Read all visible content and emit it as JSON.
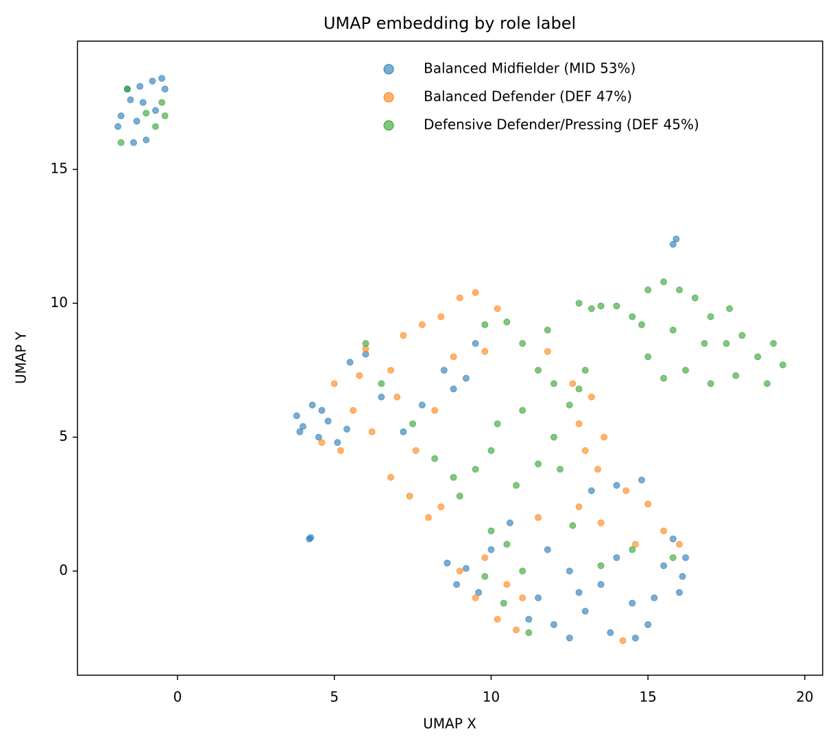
{
  "chart_data": {
    "type": "scatter",
    "title": "UMAP embedding by role label",
    "x_label": "UMAP X",
    "y_label": "UMAP Y",
    "xlim": [
      -3.19,
      20.57
    ],
    "ylim": [
      -3.89,
      19.79
    ],
    "xticks": [
      0,
      5,
      10,
      15,
      20
    ],
    "yticks": [
      0,
      5,
      10,
      15
    ],
    "grid": false,
    "legend": "upper right",
    "series": [
      {
        "name": "Balanced Midfielder (MID 53%)",
        "color": "#1f77b4",
        "x": [
          -1.8,
          -1.5,
          -1.2,
          -0.8,
          -0.5,
          -1.9,
          -1.4,
          -1.0,
          -0.7,
          -1.1,
          -1.6,
          -0.4,
          -1.3,
          15.8,
          15.9,
          4.2,
          4.25,
          3.8,
          4.0,
          4.3,
          4.5,
          4.8,
          5.1,
          5.4,
          3.9,
          4.6,
          5.5,
          6.0,
          8.5,
          8.8,
          9.2,
          7.8,
          6.5,
          9.5,
          7.2,
          8.6,
          8.9,
          9.2,
          10.0,
          11.5,
          12.0,
          12.5,
          13.0,
          13.5,
          14.0,
          14.5,
          15.0,
          15.5,
          16.0,
          16.2,
          15.8,
          14.8,
          14.0,
          13.2,
          12.5,
          11.8,
          13.8,
          14.6,
          12.8,
          15.2,
          16.1,
          11.2,
          10.6,
          9.6
        ],
        "y": [
          17.0,
          17.6,
          18.1,
          18.3,
          18.4,
          16.6,
          16.0,
          16.1,
          17.2,
          17.5,
          18.0,
          18.0,
          16.8,
          12.2,
          12.4,
          1.2,
          1.25,
          5.8,
          5.4,
          6.2,
          5.0,
          5.6,
          4.8,
          5.3,
          5.2,
          6.0,
          7.8,
          8.1,
          7.5,
          6.8,
          7.2,
          6.2,
          6.5,
          8.5,
          5.2,
          0.3,
          -0.5,
          0.1,
          0.8,
          -1.0,
          -2.0,
          -2.5,
          -1.5,
          -0.5,
          0.5,
          -1.2,
          -2.0,
          0.2,
          -0.8,
          0.5,
          1.2,
          3.4,
          3.2,
          3.0,
          0.0,
          0.8,
          -2.3,
          -2.5,
          -0.8,
          -1.0,
          -0.2,
          -1.8,
          1.8,
          -0.8
        ]
      },
      {
        "name": "Balanced Defender (DEF 47%)",
        "color": "#ff7f0e",
        "x": [
          5.0,
          5.6,
          6.2,
          5.2,
          4.6,
          6.8,
          7.2,
          7.8,
          8.4,
          9.0,
          9.5,
          10.2,
          6.8,
          7.4,
          8.0,
          8.4,
          7.6,
          8.2,
          9.8,
          7.0,
          6.0,
          12.8,
          13.2,
          13.6,
          13.4,
          12.6,
          11.8,
          9.0,
          9.5,
          10.2,
          10.5,
          9.8,
          11.0,
          10.8,
          14.3,
          15.0,
          15.5,
          16.0,
          14.6,
          13.5,
          12.8,
          11.5,
          14.2,
          5.8,
          8.8,
          13.0
        ],
        "y": [
          7.0,
          6.0,
          5.2,
          4.5,
          4.8,
          7.5,
          8.8,
          9.2,
          9.5,
          10.2,
          10.4,
          9.8,
          3.5,
          2.8,
          2.0,
          2.4,
          4.5,
          6.0,
          8.2,
          6.5,
          8.3,
          5.5,
          6.5,
          5.0,
          3.8,
          7.0,
          8.2,
          0.0,
          -1.0,
          -1.8,
          -0.5,
          0.5,
          -1.0,
          -2.2,
          3.0,
          2.5,
          1.5,
          1.0,
          1.0,
          1.8,
          2.4,
          2.0,
          -2.6,
          7.3,
          8.0,
          4.5
        ]
      },
      {
        "name": "Defensive Defender/Pressing (DEF 45%)",
        "color": "#2ca02c",
        "x": [
          -1.6,
          -0.5,
          -0.4,
          -1.0,
          -1.8,
          -0.7,
          10.5,
          11.0,
          11.5,
          12.0,
          12.5,
          12.8,
          11.0,
          10.2,
          10.0,
          9.5,
          8.8,
          8.2,
          9.0,
          10.8,
          11.5,
          12.0,
          9.8,
          6.0,
          6.5,
          7.5,
          13.0,
          11.8,
          12.2,
          12.8,
          13.2,
          13.5,
          14.0,
          14.5,
          15.0,
          15.5,
          16.0,
          16.5,
          17.0,
          17.5,
          18.0,
          18.5,
          19.0,
          19.3,
          18.8,
          17.8,
          17.0,
          16.2,
          15.5,
          15.0,
          15.8,
          16.8,
          14.8,
          17.6,
          10.0,
          10.5,
          11.0,
          11.2,
          10.4,
          9.8,
          12.6,
          13.5,
          14.5,
          15.8
        ],
        "y": [
          18.0,
          17.5,
          17.0,
          17.1,
          16.0,
          16.6,
          9.3,
          8.5,
          7.5,
          7.0,
          6.2,
          6.8,
          6.0,
          5.5,
          4.5,
          3.8,
          3.5,
          4.2,
          2.8,
          3.2,
          4.0,
          5.0,
          9.2,
          8.5,
          7.0,
          5.5,
          7.5,
          9.0,
          3.8,
          10.0,
          9.8,
          9.9,
          9.9,
          9.5,
          10.5,
          10.8,
          10.5,
          10.2,
          9.5,
          8.5,
          8.8,
          8.0,
          8.5,
          7.7,
          7.0,
          7.3,
          7.0,
          7.5,
          7.2,
          8.0,
          9.0,
          8.5,
          9.2,
          9.8,
          1.5,
          1.0,
          0.0,
          -2.3,
          -1.2,
          -0.2,
          1.7,
          0.2,
          0.8,
          0.5
        ]
      }
    ]
  }
}
